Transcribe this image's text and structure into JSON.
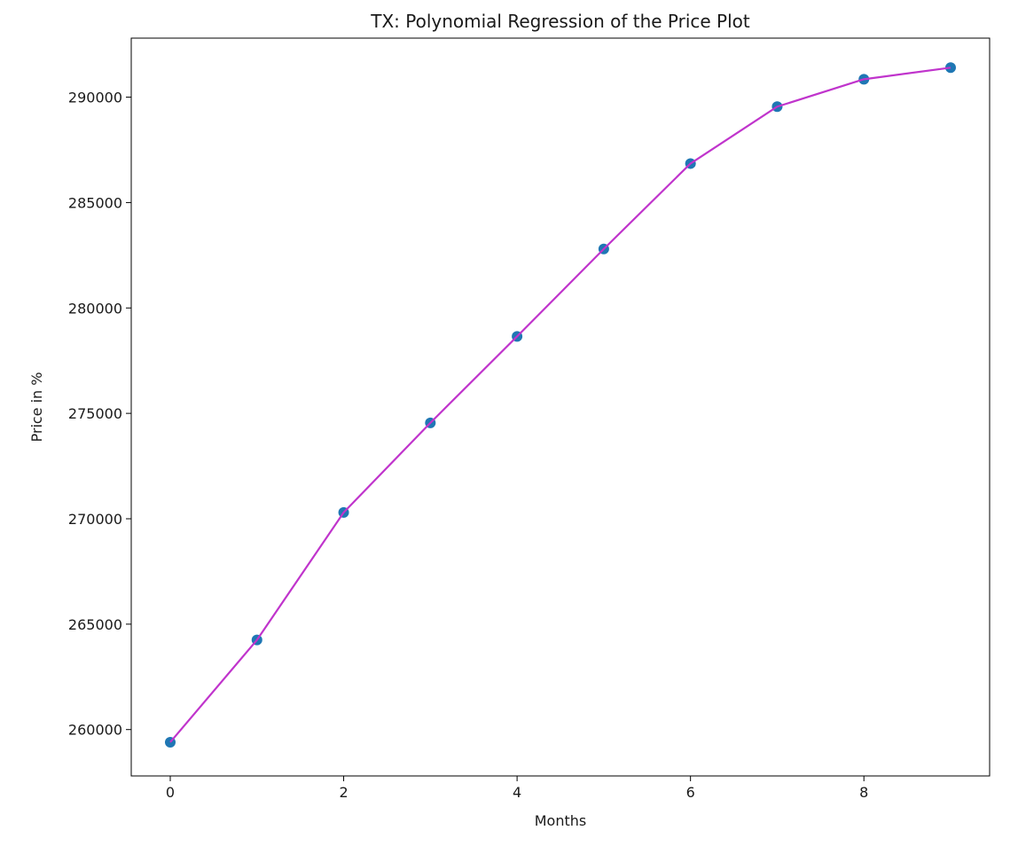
{
  "chart_data": {
    "type": "scatter",
    "title": "TX: Polynomial Regression of the Price Plot",
    "xlabel": "Months",
    "ylabel": "Price in %",
    "xlim": [
      -0.45,
      9.45
    ],
    "ylim": [
      257800,
      292800
    ],
    "x_ticks": [
      0,
      2,
      4,
      6,
      8
    ],
    "y_ticks": [
      260000,
      265000,
      270000,
      275000,
      280000,
      285000,
      290000
    ],
    "grid": false,
    "series": [
      {
        "kind": "scatter",
        "color": "#1f77b4",
        "x": [
          0,
          1,
          2,
          3,
          4,
          5,
          6,
          7,
          8,
          9
        ],
        "y": [
          259400,
          264250,
          270300,
          274550,
          278650,
          282800,
          286850,
          289550,
          290850,
          291400
        ]
      },
      {
        "kind": "line",
        "color": "#c034cc",
        "x": [
          0,
          1,
          2,
          3,
          4,
          5,
          6,
          7,
          8,
          9
        ],
        "y": [
          259400,
          264250,
          270300,
          274550,
          278650,
          282800,
          286850,
          289550,
          290850,
          291400
        ]
      }
    ]
  }
}
